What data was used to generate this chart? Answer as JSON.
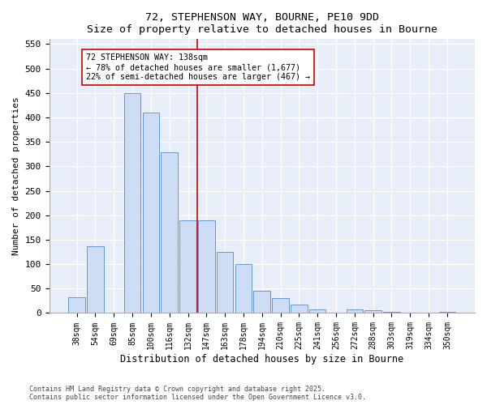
{
  "title1": "72, STEPHENSON WAY, BOURNE, PE10 9DD",
  "title2": "Size of property relative to detached houses in Bourne",
  "xlabel": "Distribution of detached houses by size in Bourne",
  "ylabel": "Number of detached properties",
  "categories": [
    "38sqm",
    "54sqm",
    "69sqm",
    "85sqm",
    "100sqm",
    "116sqm",
    "132sqm",
    "147sqm",
    "163sqm",
    "178sqm",
    "194sqm",
    "210sqm",
    "225sqm",
    "241sqm",
    "256sqm",
    "272sqm",
    "288sqm",
    "303sqm",
    "319sqm",
    "334sqm",
    "350sqm"
  ],
  "values": [
    33,
    137,
    0,
    450,
    410,
    328,
    190,
    190,
    125,
    100,
    45,
    30,
    17,
    8,
    0,
    8,
    5,
    3,
    0,
    1,
    3
  ],
  "bar_color": "#cdddf5",
  "bar_edge_color": "#6699cc",
  "vline_x": 6.5,
  "vline_color": "#cc0000",
  "annotation_text": "72 STEPHENSON WAY: 138sqm\n← 78% of detached houses are smaller (1,677)\n22% of semi-detached houses are larger (467) →",
  "annotation_box_color": "#ffffff",
  "annotation_box_edge": "#cc0000",
  "ylim": [
    0,
    560
  ],
  "yticks": [
    0,
    50,
    100,
    150,
    200,
    250,
    300,
    350,
    400,
    450,
    500,
    550
  ],
  "bg_color": "#e8eef8",
  "fig_color": "#ffffff",
  "footer1": "Contains HM Land Registry data © Crown copyright and database right 2025.",
  "footer2": "Contains public sector information licensed under the Open Government Licence v3.0."
}
